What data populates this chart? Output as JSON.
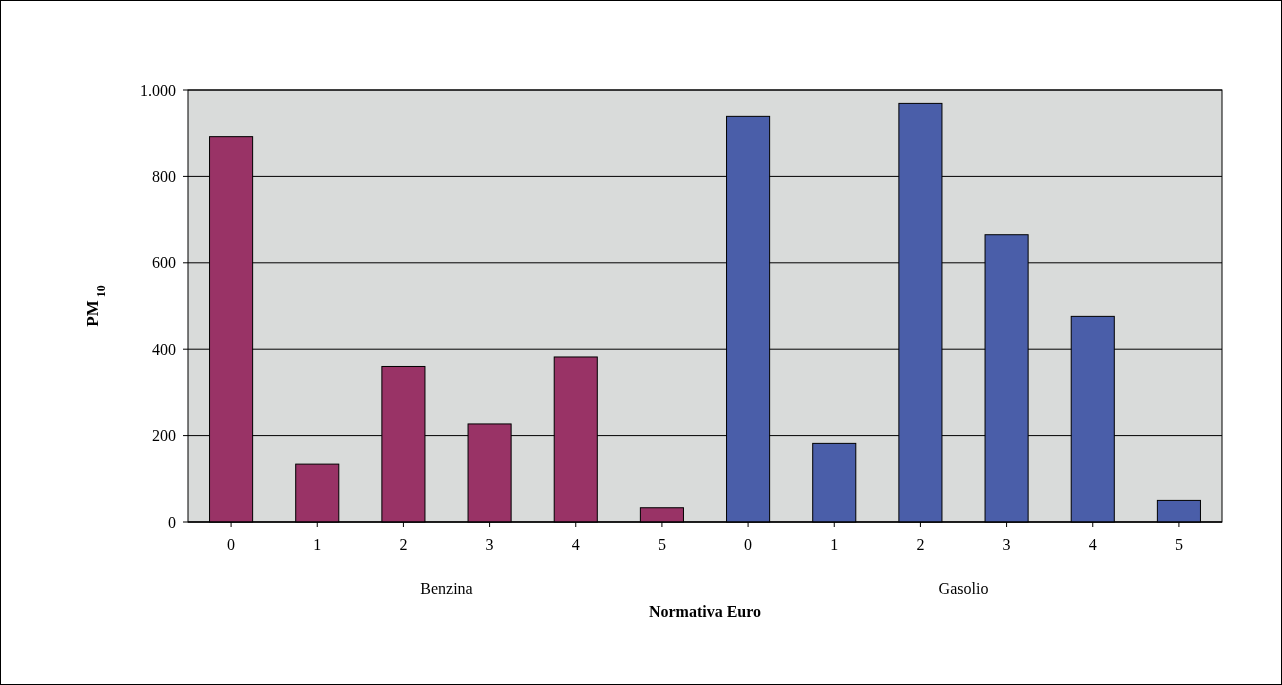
{
  "chart_data": {
    "type": "bar",
    "xlabel": "Normativa Euro",
    "ylabel": "PM$_{10}$",
    "categories": [
      "0",
      "1",
      "2",
      "3",
      "4",
      "5",
      "0",
      "1",
      "2",
      "3",
      "4",
      "5"
    ],
    "values": [
      892,
      134,
      360,
      227,
      382,
      33,
      939,
      182,
      969,
      665,
      476,
      50
    ],
    "colors": [
      "#993366",
      "#993366",
      "#993366",
      "#993366",
      "#993366",
      "#993366",
      "#4a5ea9",
      "#4a5ea9",
      "#4a5ea9",
      "#4a5ea9",
      "#4a5ea9",
      "#4a5ea9"
    ],
    "ylim": [
      0,
      1000
    ],
    "yticks": [
      0,
      200,
      400,
      600,
      800,
      {
        "value": 1000,
        "label": "1.000"
      }
    ],
    "grid": "y",
    "annotations": [
      "Benzina",
      "Gasolio"
    ]
  }
}
